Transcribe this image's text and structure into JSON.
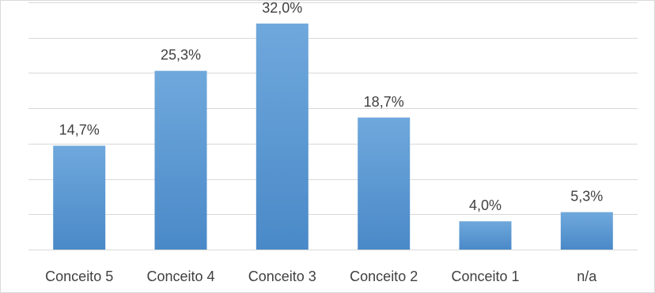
{
  "chart_data": {
    "type": "bar",
    "categories": [
      "Conceito 5",
      "Conceito 4",
      "Conceito 3",
      "Conceito 2",
      "Conceito 1",
      "n/a"
    ],
    "values": [
      14.7,
      25.3,
      32.0,
      18.7,
      4.0,
      5.3
    ],
    "value_labels": [
      "14,7%",
      "25,3%",
      "32,0%",
      "18,7%",
      "4,0%",
      "5,3%"
    ],
    "title": "",
    "xlabel": "",
    "ylabel": "",
    "ylim": [
      0,
      35
    ],
    "grid": true,
    "legend": "none",
    "bar_color": "#5b9bd5",
    "bar_color_light": "#6fa8dc",
    "bar_color_dark": "#4a89c8"
  }
}
